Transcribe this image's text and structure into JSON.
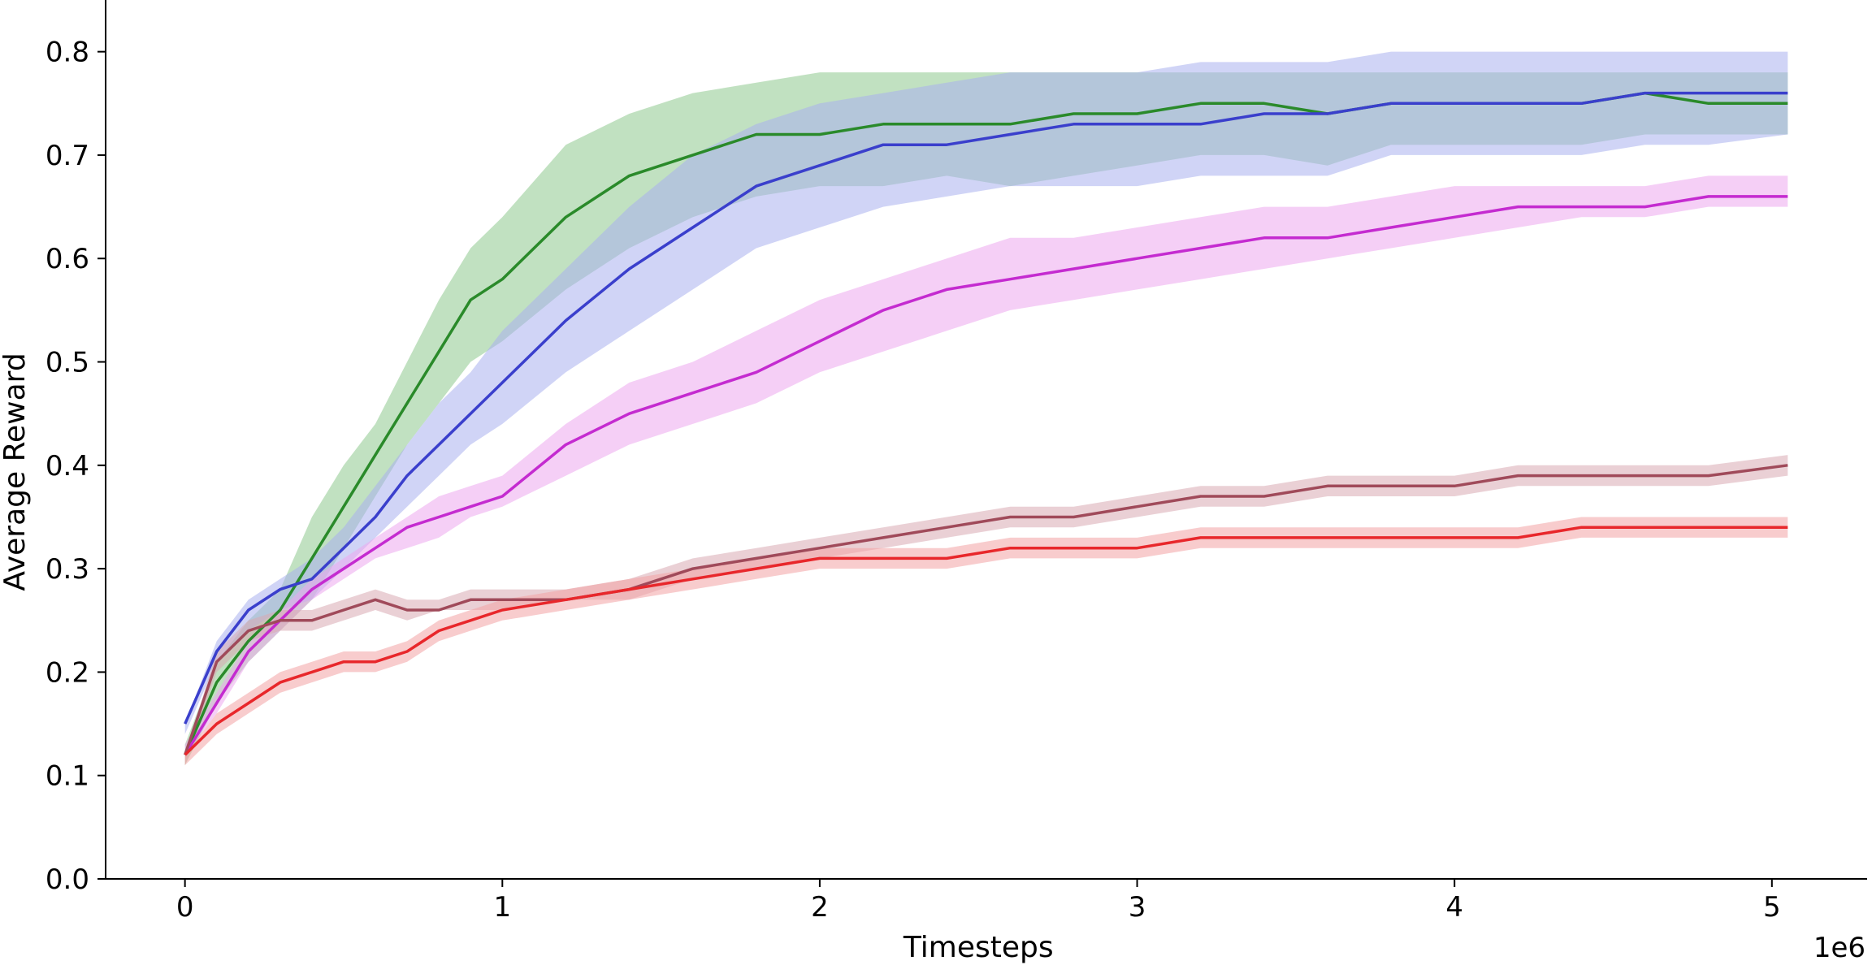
{
  "chart_data": {
    "type": "line",
    "title": "",
    "xlabel": "Timesteps",
    "ylabel": "Average Reward",
    "x_offset_label": "1e6",
    "xlim": [
      -0.25,
      5.3
    ],
    "ylim": [
      0.0,
      0.85
    ],
    "xticks": [
      0,
      1,
      2,
      3,
      4,
      5
    ],
    "xtick_labels": [
      "0",
      "1",
      "2",
      "3",
      "4",
      "5"
    ],
    "yticks": [
      0.0,
      0.1,
      0.2,
      0.3,
      0.4,
      0.5,
      0.6,
      0.7,
      0.8
    ],
    "ytick_labels": [
      "0.0",
      "0.1",
      "0.2",
      "0.3",
      "0.4",
      "0.5",
      "0.6",
      "0.7",
      "0.8"
    ],
    "grid": false,
    "legend": "none",
    "x": [
      0,
      0.1,
      0.2,
      0.3,
      0.4,
      0.5,
      0.6,
      0.7,
      0.8,
      0.9,
      1.0,
      1.2,
      1.4,
      1.6,
      1.8,
      2.0,
      2.2,
      2.4,
      2.6,
      2.8,
      3.0,
      3.2,
      3.4,
      3.6,
      3.8,
      4.0,
      4.2,
      4.4,
      4.6,
      4.8,
      5.05
    ],
    "series": [
      {
        "name": "green",
        "color": "#2a8a2a",
        "fill": "#8ec98e",
        "values": [
          0.12,
          0.19,
          0.23,
          0.26,
          0.31,
          0.36,
          0.41,
          0.46,
          0.51,
          0.56,
          0.58,
          0.64,
          0.68,
          0.7,
          0.72,
          0.72,
          0.73,
          0.73,
          0.73,
          0.74,
          0.74,
          0.75,
          0.75,
          0.74,
          0.75,
          0.75,
          0.75,
          0.75,
          0.76,
          0.75,
          0.75
        ],
        "lower": [
          0.11,
          0.17,
          0.21,
          0.24,
          0.27,
          0.32,
          0.37,
          0.42,
          0.46,
          0.5,
          0.52,
          0.57,
          0.61,
          0.64,
          0.66,
          0.67,
          0.67,
          0.68,
          0.67,
          0.68,
          0.69,
          0.7,
          0.7,
          0.69,
          0.71,
          0.71,
          0.71,
          0.71,
          0.72,
          0.72,
          0.72
        ],
        "upper": [
          0.13,
          0.21,
          0.25,
          0.28,
          0.35,
          0.4,
          0.44,
          0.5,
          0.56,
          0.61,
          0.64,
          0.71,
          0.74,
          0.76,
          0.77,
          0.78,
          0.78,
          0.78,
          0.78,
          0.78,
          0.78,
          0.78,
          0.78,
          0.78,
          0.78,
          0.78,
          0.78,
          0.78,
          0.78,
          0.78,
          0.78
        ]
      },
      {
        "name": "blue",
        "color": "#3a3fcc",
        "fill": "#a9b0ee",
        "values": [
          0.15,
          0.22,
          0.26,
          0.28,
          0.29,
          0.32,
          0.35,
          0.39,
          0.42,
          0.45,
          0.48,
          0.54,
          0.59,
          0.63,
          0.67,
          0.69,
          0.71,
          0.71,
          0.72,
          0.73,
          0.73,
          0.73,
          0.74,
          0.74,
          0.75,
          0.75,
          0.75,
          0.75,
          0.76,
          0.76,
          0.76
        ],
        "lower": [
          0.14,
          0.21,
          0.24,
          0.26,
          0.27,
          0.3,
          0.33,
          0.36,
          0.39,
          0.42,
          0.44,
          0.49,
          0.53,
          0.57,
          0.61,
          0.63,
          0.65,
          0.66,
          0.67,
          0.67,
          0.67,
          0.68,
          0.68,
          0.68,
          0.7,
          0.7,
          0.7,
          0.7,
          0.71,
          0.71,
          0.72
        ],
        "upper": [
          0.15,
          0.23,
          0.27,
          0.29,
          0.31,
          0.34,
          0.38,
          0.42,
          0.46,
          0.49,
          0.53,
          0.59,
          0.65,
          0.7,
          0.73,
          0.75,
          0.76,
          0.77,
          0.78,
          0.78,
          0.78,
          0.79,
          0.79,
          0.79,
          0.8,
          0.8,
          0.8,
          0.8,
          0.8,
          0.8,
          0.8
        ]
      },
      {
        "name": "magenta",
        "color": "#c42bd0",
        "fill": "#eca7ef",
        "values": [
          0.12,
          0.17,
          0.22,
          0.25,
          0.28,
          0.3,
          0.32,
          0.34,
          0.35,
          0.36,
          0.37,
          0.42,
          0.45,
          0.47,
          0.49,
          0.52,
          0.55,
          0.57,
          0.58,
          0.59,
          0.6,
          0.61,
          0.62,
          0.62,
          0.63,
          0.64,
          0.65,
          0.65,
          0.65,
          0.66,
          0.66
        ],
        "lower": [
          0.12,
          0.16,
          0.21,
          0.24,
          0.27,
          0.29,
          0.31,
          0.32,
          0.33,
          0.35,
          0.36,
          0.39,
          0.42,
          0.44,
          0.46,
          0.49,
          0.51,
          0.53,
          0.55,
          0.56,
          0.57,
          0.58,
          0.59,
          0.6,
          0.61,
          0.62,
          0.63,
          0.64,
          0.64,
          0.65,
          0.65
        ],
        "upper": [
          0.13,
          0.18,
          0.23,
          0.26,
          0.29,
          0.31,
          0.33,
          0.35,
          0.37,
          0.38,
          0.39,
          0.44,
          0.48,
          0.5,
          0.53,
          0.56,
          0.58,
          0.6,
          0.62,
          0.62,
          0.63,
          0.64,
          0.65,
          0.65,
          0.66,
          0.67,
          0.67,
          0.67,
          0.67,
          0.68,
          0.68
        ]
      },
      {
        "name": "brown",
        "color": "#a04a5a",
        "fill": "#d9aab3",
        "values": [
          0.12,
          0.21,
          0.24,
          0.25,
          0.25,
          0.26,
          0.27,
          0.26,
          0.26,
          0.27,
          0.27,
          0.27,
          0.28,
          0.3,
          0.31,
          0.32,
          0.33,
          0.34,
          0.35,
          0.35,
          0.36,
          0.37,
          0.37,
          0.38,
          0.38,
          0.38,
          0.39,
          0.39,
          0.39,
          0.39,
          0.4
        ],
        "lower": [
          0.11,
          0.2,
          0.23,
          0.24,
          0.24,
          0.25,
          0.26,
          0.25,
          0.26,
          0.26,
          0.26,
          0.27,
          0.27,
          0.29,
          0.3,
          0.31,
          0.32,
          0.33,
          0.34,
          0.34,
          0.35,
          0.36,
          0.36,
          0.37,
          0.37,
          0.37,
          0.38,
          0.38,
          0.38,
          0.38,
          0.39
        ],
        "upper": [
          0.12,
          0.22,
          0.25,
          0.26,
          0.26,
          0.27,
          0.28,
          0.27,
          0.27,
          0.28,
          0.28,
          0.28,
          0.29,
          0.31,
          0.32,
          0.33,
          0.34,
          0.35,
          0.36,
          0.36,
          0.37,
          0.38,
          0.38,
          0.39,
          0.39,
          0.39,
          0.4,
          0.4,
          0.4,
          0.4,
          0.41
        ]
      },
      {
        "name": "red",
        "color": "#e8272b",
        "fill": "#f3a3a4",
        "values": [
          0.12,
          0.15,
          0.17,
          0.19,
          0.2,
          0.21,
          0.21,
          0.22,
          0.24,
          0.25,
          0.26,
          0.27,
          0.28,
          0.29,
          0.3,
          0.31,
          0.31,
          0.31,
          0.32,
          0.32,
          0.32,
          0.33,
          0.33,
          0.33,
          0.33,
          0.33,
          0.33,
          0.34,
          0.34,
          0.34,
          0.34
        ],
        "lower": [
          0.11,
          0.14,
          0.16,
          0.18,
          0.19,
          0.2,
          0.2,
          0.21,
          0.23,
          0.24,
          0.25,
          0.26,
          0.27,
          0.28,
          0.29,
          0.3,
          0.3,
          0.3,
          0.31,
          0.31,
          0.31,
          0.32,
          0.32,
          0.32,
          0.32,
          0.32,
          0.32,
          0.33,
          0.33,
          0.33,
          0.33
        ],
        "upper": [
          0.12,
          0.16,
          0.18,
          0.2,
          0.21,
          0.22,
          0.22,
          0.23,
          0.25,
          0.26,
          0.27,
          0.28,
          0.29,
          0.3,
          0.31,
          0.32,
          0.32,
          0.32,
          0.33,
          0.33,
          0.33,
          0.34,
          0.34,
          0.34,
          0.34,
          0.34,
          0.34,
          0.35,
          0.35,
          0.35,
          0.35
        ]
      }
    ]
  }
}
